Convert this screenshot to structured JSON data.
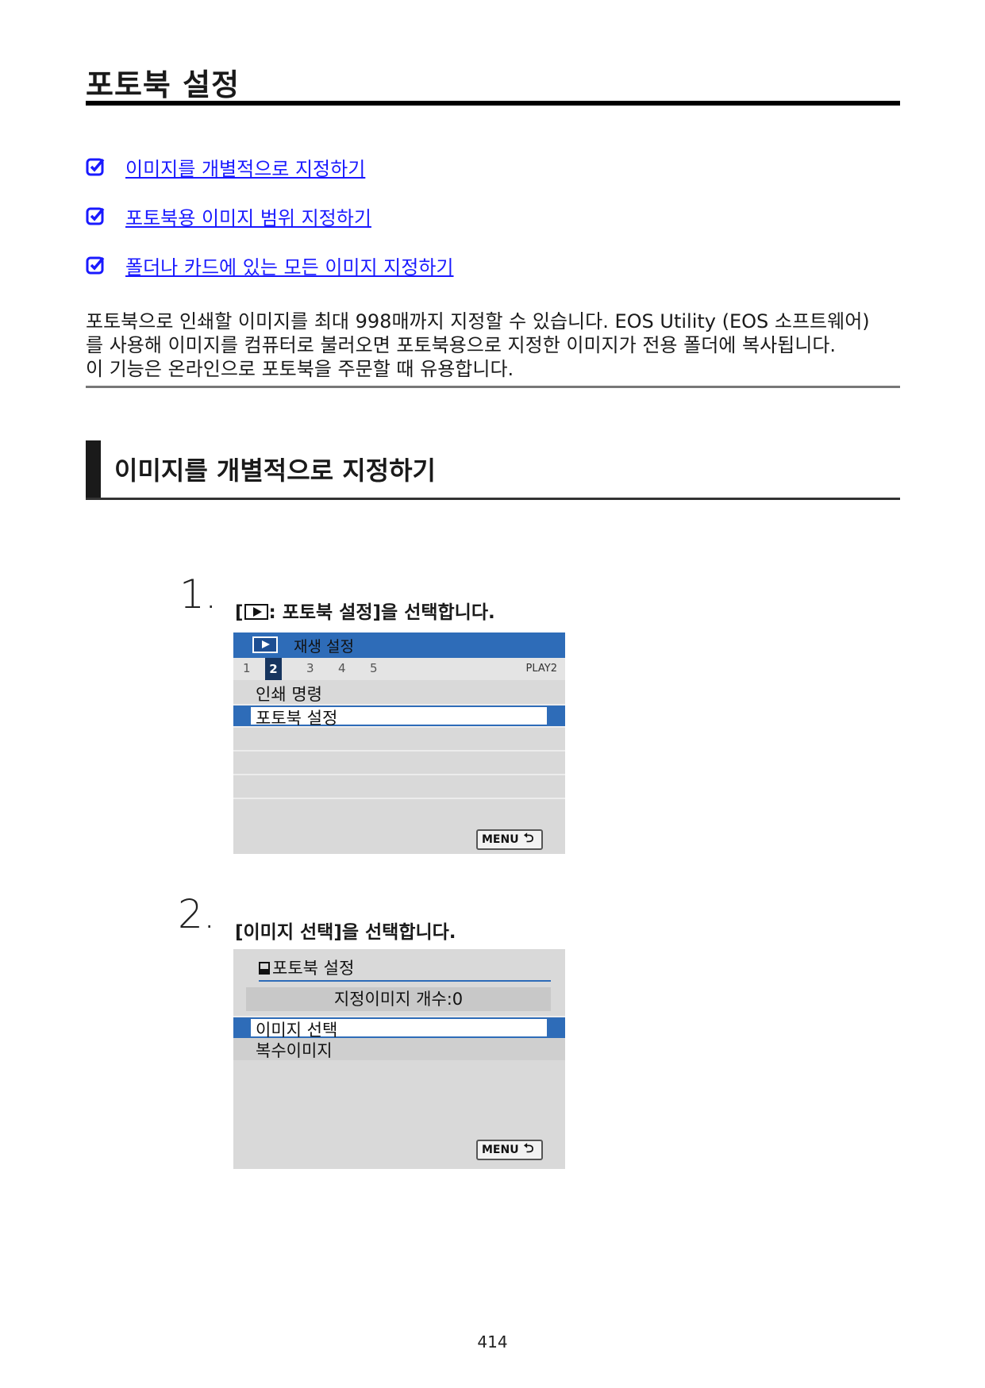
{
  "page": {
    "title": "포토북 설정",
    "number": "414"
  },
  "links": [
    {
      "label": "이미지를 개별적으로 지정하기"
    },
    {
      "label": "포토북용 이미지 범위 지정하기"
    },
    {
      "label": "폴더나 카드에 있는 모든 이미지 지정하기"
    }
  ],
  "intro": {
    "line1": "포토북으로 인쇄할 이미지를 최대 998매까지 지정할 수 있습니다. EOS Utility (EOS 소프트웨어)",
    "line2": "를 사용해 이미지를 컴퓨터로 불러오면 포토북용으로 지정한 이미지가 전용 폴더에 복사됩니다.",
    "line3": "이 기능은 온라인으로 포토북을 주문할 때 유용합니다."
  },
  "section": {
    "title": "이미지를 개별적으로 지정하기"
  },
  "steps": [
    {
      "number": "1.",
      "text_prefix": "[",
      "text_suffix": ": 포토북 설정]을 선택합니다."
    },
    {
      "number": "2.",
      "text": "[이미지 선택]을 선택합니다."
    }
  ],
  "screen1": {
    "header_label": "재생 설정",
    "tabs": [
      "1",
      "2",
      "3",
      "4",
      "5"
    ],
    "active_tab": "2",
    "tab_tag": "PLAY2",
    "items": [
      "인쇄 명령",
      "포토북 설정"
    ],
    "selected_item": "포토북 설정",
    "menu_button": "MENU",
    "return_icon": "return-arrow-icon"
  },
  "screen2": {
    "title": "포토북 설정",
    "count_label": "지정이미지 개수:0",
    "items": [
      "이미지 선택",
      "복수이미지"
    ],
    "selected_item": "이미지 선택",
    "menu_button": "MENU",
    "return_icon": "return-arrow-icon"
  },
  "colors": {
    "link": "#1a1aff",
    "camera_accent": "#2e6cb8",
    "camera_background": "#d9d9d9"
  },
  "icons": {
    "link_marker": "checkbox-pencil-icon",
    "play": "play-icon"
  }
}
